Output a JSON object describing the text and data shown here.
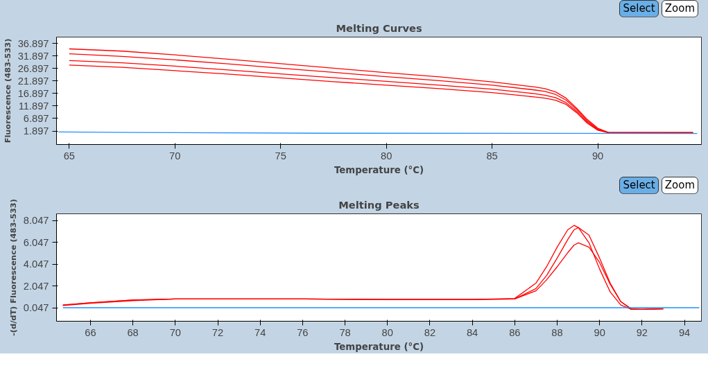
{
  "chart_data": [
    {
      "type": "line",
      "title": "Melting Curves",
      "xlabel": "Temperature (°C)",
      "ylabel": "Fluorescence (483-533)",
      "annotations": [
        "Select",
        "Zoom"
      ],
      "x": [
        65,
        67.5,
        70,
        72.5,
        75,
        77.5,
        80,
        82.5,
        85,
        87,
        87.5,
        88,
        88.5,
        89,
        89.5,
        90,
        90.5,
        92,
        94.5
      ],
      "xlim": [
        64.4,
        94.9
      ],
      "ylim": [
        -3.5,
        39.4
      ],
      "xticks": [
        65,
        70,
        75,
        80,
        85,
        90
      ],
      "yticks": [
        1.897,
        6.897,
        11.897,
        16.897,
        21.897,
        26.897,
        31.897,
        36.897
      ],
      "grid": false,
      "series": [
        {
          "color": "#ff0000",
          "values": [
            34.7,
            33.8,
            32.3,
            30.6,
            28.8,
            27.0,
            25.2,
            23.5,
            21.5,
            19.5,
            18.8,
            17.5,
            15.0,
            11.0,
            6.5,
            3.0,
            1.3,
            1.2,
            1.2
          ]
        },
        {
          "color": "#ff0000",
          "values": [
            32.7,
            31.7,
            30.3,
            28.7,
            27.0,
            25.3,
            23.6,
            22.0,
            20.2,
            18.3,
            17.7,
            16.5,
            14.2,
            10.5,
            6.0,
            2.7,
            1.3,
            1.2,
            1.2
          ]
        },
        {
          "color": "#ff0000",
          "values": [
            30.0,
            29.1,
            27.8,
            26.3,
            24.7,
            23.2,
            21.7,
            20.2,
            18.6,
            16.8,
            16.2,
            15.2,
            13.2,
            9.8,
            5.5,
            2.4,
            1.3,
            1.2,
            1.2
          ]
        },
        {
          "color": "#ff0000",
          "values": [
            28.2,
            27.3,
            26.0,
            24.6,
            23.1,
            21.6,
            20.2,
            18.8,
            17.2,
            15.5,
            15.0,
            14.2,
            12.5,
            9.2,
            5.0,
            2.2,
            1.2,
            1.2,
            1.2
          ]
        },
        {
          "color": "#1e90ff",
          "x": [
            64.5,
            68,
            77,
            94.7
          ],
          "values": [
            1.5,
            1.3,
            1.0,
            0.9
          ]
        }
      ]
    },
    {
      "type": "line",
      "title": "Melting Peaks",
      "xlabel": "Temperature (°C)",
      "ylabel": "-(d/dT) Fluorescence (483-533)",
      "annotations": [
        "Select",
        "Zoom"
      ],
      "x": [
        64.7,
        66,
        68,
        70,
        76,
        80,
        84,
        86,
        87,
        87.5,
        88,
        88.5,
        88.8,
        89,
        89.5,
        90,
        90.5,
        91,
        91.5,
        92,
        93
      ],
      "xlim": [
        64.4,
        94.8
      ],
      "ylim": [
        -1.19,
        8.66
      ],
      "xticks": [
        66,
        68,
        70,
        72,
        74,
        76,
        78,
        80,
        82,
        84,
        86,
        88,
        90,
        92,
        94
      ],
      "yticks": [
        0.047,
        2.047,
        4.047,
        6.047,
        8.047
      ],
      "grid": false,
      "series": [
        {
          "color": "#ff0000",
          "values": [
            0.3,
            0.5,
            0.75,
            0.85,
            0.85,
            0.8,
            0.8,
            0.9,
            2.3,
            3.8,
            5.6,
            7.2,
            7.6,
            7.4,
            6.0,
            3.6,
            1.5,
            0.3,
            -0.1,
            -0.1,
            -0.05
          ]
        },
        {
          "color": "#ff0000",
          "values": [
            0.25,
            0.45,
            0.7,
            0.85,
            0.85,
            0.8,
            0.8,
            0.85,
            1.8,
            3.0,
            4.6,
            6.3,
            7.2,
            7.4,
            6.7,
            4.6,
            2.3,
            0.6,
            -0.1,
            -0.1,
            -0.05
          ]
        },
        {
          "color": "#ff0000",
          "values": [
            0.3,
            0.5,
            0.75,
            0.85,
            0.85,
            0.8,
            0.8,
            0.85,
            1.6,
            2.6,
            3.8,
            5.1,
            5.8,
            6.0,
            5.6,
            4.2,
            2.2,
            0.6,
            -0.05,
            -0.1,
            -0.05
          ]
        },
        {
          "color": "#1e90ff",
          "x": [
            64.7,
            94.7
          ],
          "values": [
            0.05,
            0.05
          ]
        }
      ]
    }
  ]
}
